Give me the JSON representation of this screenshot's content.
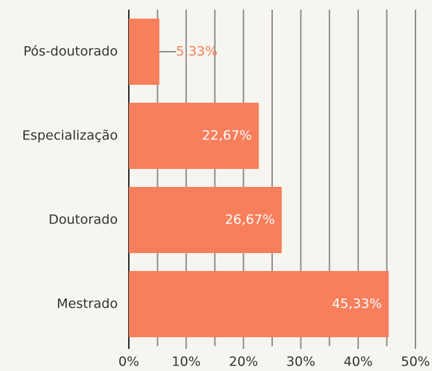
{
  "chart_data": {
    "type": "bar",
    "orientation": "horizontal",
    "categories": [
      "Pós-doutorado",
      "Especialização",
      "Doutorado",
      "Mestrado"
    ],
    "values": [
      5.33,
      22.67,
      26.67,
      45.33
    ],
    "value_labels": [
      "5,33%",
      "22,67%",
      "26,67%",
      "45,33%"
    ],
    "color": "#f77f5c",
    "xlim": [
      0,
      50
    ],
    "xticks": [
      {
        "value": 0,
        "label": "0%"
      },
      {
        "value": 10,
        "label": "10%"
      },
      {
        "value": 20,
        "label": "20%"
      },
      {
        "value": 30,
        "label": "30%"
      },
      {
        "value": 40,
        "label": "40%"
      },
      {
        "value": 50,
        "label": "50%"
      }
    ],
    "minor_xticks": [
      5,
      15,
      25,
      35,
      45
    ],
    "grid": true
  }
}
